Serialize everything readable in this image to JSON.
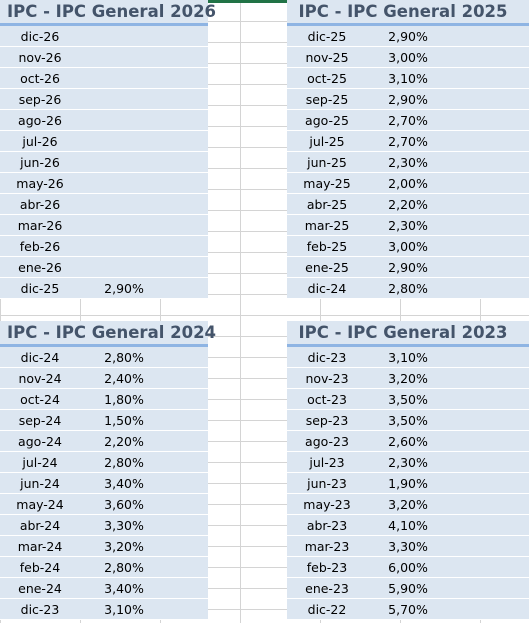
{
  "tables": [
    {
      "title": "IPC - IPC General 2026",
      "rows": [
        {
          "month": "dic-26",
          "value": ""
        },
        {
          "month": "nov-26",
          "value": ""
        },
        {
          "month": "oct-26",
          "value": ""
        },
        {
          "month": "sep-26",
          "value": ""
        },
        {
          "month": "ago-26",
          "value": ""
        },
        {
          "month": "jul-26",
          "value": ""
        },
        {
          "month": "jun-26",
          "value": ""
        },
        {
          "month": "may-26",
          "value": ""
        },
        {
          "month": "abr-26",
          "value": ""
        },
        {
          "month": "mar-26",
          "value": ""
        },
        {
          "month": "feb-26",
          "value": ""
        },
        {
          "month": "ene-26",
          "value": ""
        },
        {
          "month": "dic-25",
          "value": "2,90%"
        }
      ]
    },
    {
      "title": "IPC - IPC General 2025",
      "rows": [
        {
          "month": "dic-25",
          "value": "2,90%"
        },
        {
          "month": "nov-25",
          "value": "3,00%"
        },
        {
          "month": "oct-25",
          "value": "3,10%"
        },
        {
          "month": "sep-25",
          "value": "2,90%"
        },
        {
          "month": "ago-25",
          "value": "2,70%"
        },
        {
          "month": "jul-25",
          "value": "2,70%"
        },
        {
          "month": "jun-25",
          "value": "2,30%"
        },
        {
          "month": "may-25",
          "value": "2,00%"
        },
        {
          "month": "abr-25",
          "value": "2,20%"
        },
        {
          "month": "mar-25",
          "value": "2,30%"
        },
        {
          "month": "feb-25",
          "value": "3,00%"
        },
        {
          "month": "ene-25",
          "value": "2,90%"
        },
        {
          "month": "dic-24",
          "value": "2,80%"
        }
      ]
    },
    {
      "title": "IPC - IPC General 2024",
      "rows": [
        {
          "month": "dic-24",
          "value": "2,80%"
        },
        {
          "month": "nov-24",
          "value": "2,40%"
        },
        {
          "month": "oct-24",
          "value": "1,80%"
        },
        {
          "month": "sep-24",
          "value": "1,50%"
        },
        {
          "month": "ago-24",
          "value": "2,20%"
        },
        {
          "month": "jul-24",
          "value": "2,80%"
        },
        {
          "month": "jun-24",
          "value": "3,40%"
        },
        {
          "month": "may-24",
          "value": "3,60%"
        },
        {
          "month": "abr-24",
          "value": "3,30%"
        },
        {
          "month": "mar-24",
          "value": "3,20%"
        },
        {
          "month": "feb-24",
          "value": "2,80%"
        },
        {
          "month": "ene-24",
          "value": "3,40%"
        },
        {
          "month": "dic-23",
          "value": "3,10%"
        }
      ]
    },
    {
      "title": "IPC - IPC General 2023",
      "rows": [
        {
          "month": "dic-23",
          "value": "3,10%"
        },
        {
          "month": "nov-23",
          "value": "3,20%"
        },
        {
          "month": "oct-23",
          "value": "3,50%"
        },
        {
          "month": "sep-23",
          "value": "3,50%"
        },
        {
          "month": "ago-23",
          "value": "2,60%"
        },
        {
          "month": "jul-23",
          "value": "2,30%"
        },
        {
          "month": "jun-23",
          "value": "1,90%"
        },
        {
          "month": "may-23",
          "value": "3,20%"
        },
        {
          "month": "abr-23",
          "value": "4,10%"
        },
        {
          "month": "mar-23",
          "value": "3,30%"
        },
        {
          "month": "feb-23",
          "value": "6,00%"
        },
        {
          "month": "ene-23",
          "value": "5,90%"
        },
        {
          "month": "dic-22",
          "value": "5,70%"
        }
      ]
    }
  ],
  "colors": {
    "header_fill": "#dce6f1",
    "header_border": "#8eb4e3",
    "header_text": "#44546a",
    "row_fill": "#dce6f1",
    "gridline": "#d4d4d4",
    "selection": "#217346"
  }
}
